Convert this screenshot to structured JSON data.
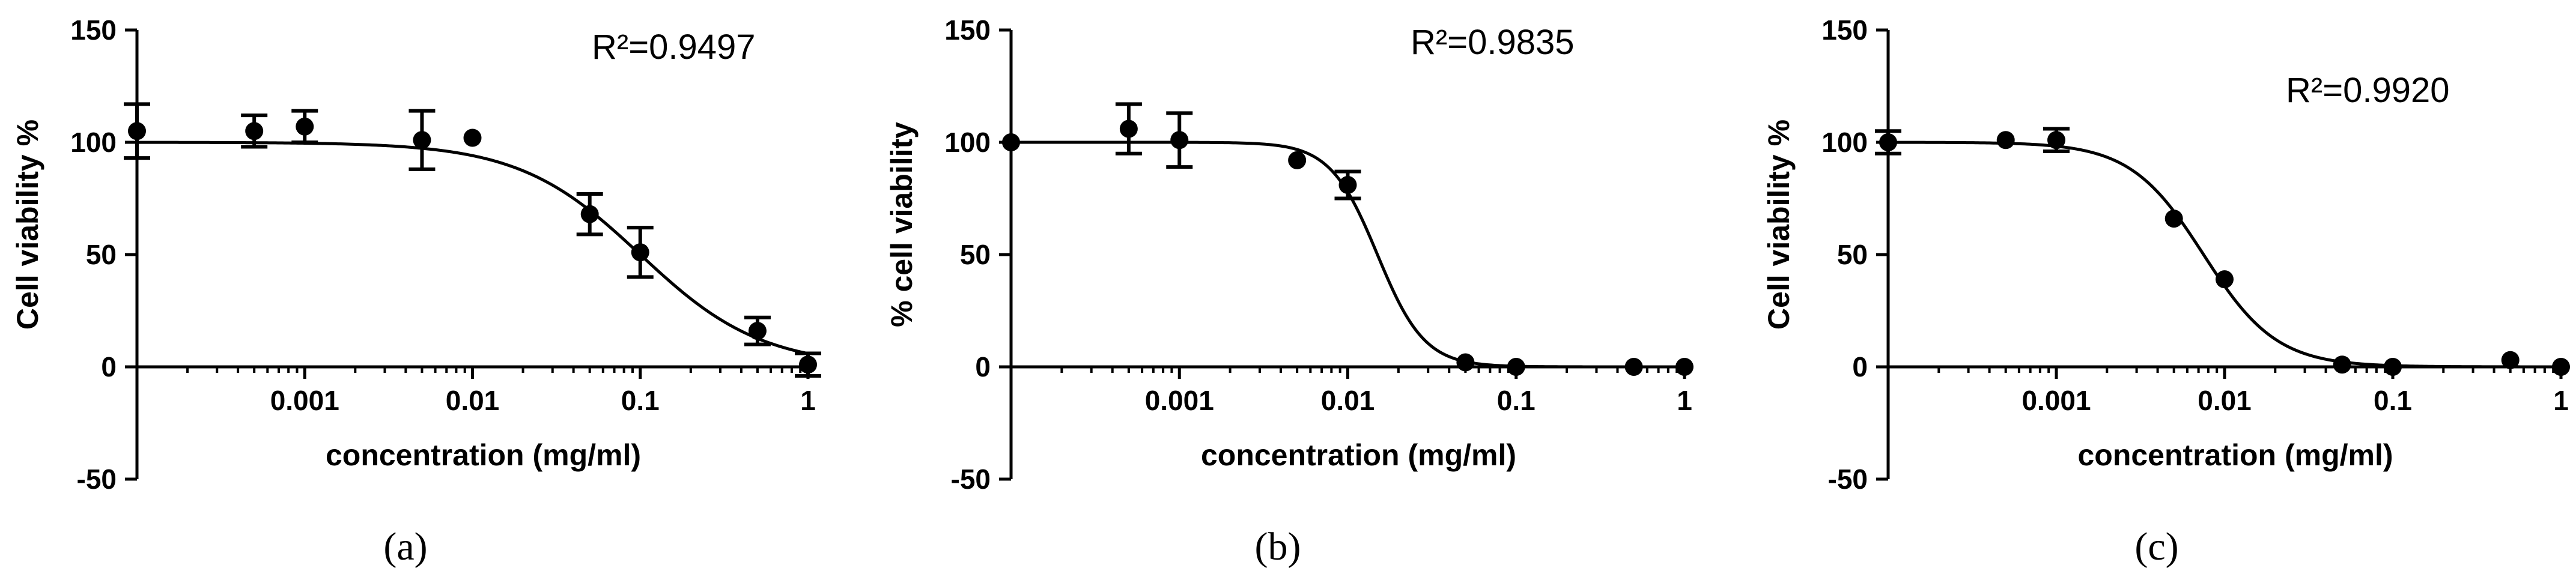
{
  "figure": {
    "panel_captions": [
      "(a)",
      "(b)",
      "(c)"
    ]
  },
  "chart_data": [
    {
      "type": "scatter",
      "caption": "(a)",
      "r2_label": "R²=0.9497",
      "xlabel": "concentration (mg/ml)",
      "ylabel": "Cell viability %",
      "x_scale": "log",
      "xlim": [
        0.0001,
        1
      ],
      "ylim": [
        -50,
        150
      ],
      "x_ticks": [
        0.001,
        0.01,
        0.1,
        1
      ],
      "x_tick_labels": [
        "0.001",
        "0.01",
        "0.1",
        "1"
      ],
      "y_ticks": [
        -50,
        0,
        50,
        100,
        150
      ],
      "y_tick_labels": [
        "-50",
        "0",
        "50",
        "100",
        "150"
      ],
      "grid": false,
      "points": [
        {
          "x": 0.0001,
          "y": 105,
          "err": 12
        },
        {
          "x": 0.0005,
          "y": 105,
          "err": 7
        },
        {
          "x": 0.001,
          "y": 107,
          "err": 7
        },
        {
          "x": 0.005,
          "y": 101,
          "err": 13
        },
        {
          "x": 0.01,
          "y": 102,
          "err": 0
        },
        {
          "x": 0.05,
          "y": 68,
          "err": 9
        },
        {
          "x": 0.1,
          "y": 51,
          "err": 11
        },
        {
          "x": 0.5,
          "y": 16,
          "err": 6
        },
        {
          "x": 1,
          "y": 1,
          "err": 5
        }
      ],
      "fit": {
        "model": "sigmoidal dose-response",
        "top": 100,
        "bottom": 0,
        "ec50": 0.1,
        "hill": 1.2
      }
    },
    {
      "type": "scatter",
      "caption": "(b)",
      "r2_label": "R²=0.9835",
      "xlabel": "concentration (mg/ml)",
      "ylabel": "% cell viability",
      "x_scale": "log",
      "xlim": [
        0.0001,
        1
      ],
      "ylim": [
        -50,
        150
      ],
      "x_ticks": [
        0.001,
        0.01,
        0.1,
        1
      ],
      "x_tick_labels": [
        "0.001",
        "0.01",
        "0.1",
        "1"
      ],
      "y_ticks": [
        -50,
        0,
        50,
        100,
        150
      ],
      "y_tick_labels": [
        "-50",
        "0",
        "50",
        "100",
        "150"
      ],
      "grid": false,
      "points": [
        {
          "x": 0.0001,
          "y": 100,
          "err": 0
        },
        {
          "x": 0.0005,
          "y": 106,
          "err": 11
        },
        {
          "x": 0.001,
          "y": 101,
          "err": 12
        },
        {
          "x": 0.005,
          "y": 92,
          "err": 0
        },
        {
          "x": 0.01,
          "y": 81,
          "err": 6
        },
        {
          "x": 0.05,
          "y": 2,
          "err": 0
        },
        {
          "x": 0.1,
          "y": 0,
          "err": 0
        },
        {
          "x": 0.5,
          "y": 0,
          "err": 0
        },
        {
          "x": 1,
          "y": 0,
          "err": 0
        }
      ],
      "fit": {
        "model": "sigmoidal dose-response",
        "top": 100,
        "bottom": 0,
        "ec50": 0.015,
        "hill": 3.1
      }
    },
    {
      "type": "scatter",
      "caption": "(c)",
      "r2_label": "R²=0.9920",
      "xlabel": "concentration (mg/ml)",
      "ylabel": "Cell viability %",
      "x_scale": "log",
      "xlim": [
        0.0001,
        1
      ],
      "ylim": [
        -50,
        150
      ],
      "x_ticks": [
        0.001,
        0.01,
        0.1,
        1
      ],
      "x_tick_labels": [
        "0.001",
        "0.01",
        "0.1",
        "1"
      ],
      "y_ticks": [
        -50,
        0,
        50,
        100,
        150
      ],
      "y_tick_labels": [
        "-50",
        "0",
        "50",
        "100",
        "150"
      ],
      "grid": false,
      "points": [
        {
          "x": 0.0001,
          "y": 100,
          "err": 5
        },
        {
          "x": 0.0005,
          "y": 101,
          "err": 0
        },
        {
          "x": 0.001,
          "y": 101,
          "err": 5
        },
        {
          "x": 0.005,
          "y": 66,
          "err": 0
        },
        {
          "x": 0.01,
          "y": 39,
          "err": 0
        },
        {
          "x": 0.05,
          "y": 1,
          "err": 0
        },
        {
          "x": 0.1,
          "y": 0,
          "err": 0
        },
        {
          "x": 0.5,
          "y": 3,
          "err": 0
        },
        {
          "x": 1,
          "y": 0,
          "err": 0
        }
      ],
      "fit": {
        "model": "sigmoidal dose-response",
        "top": 100,
        "bottom": 0,
        "ec50": 0.0075,
        "hill": 2.0
      }
    }
  ]
}
